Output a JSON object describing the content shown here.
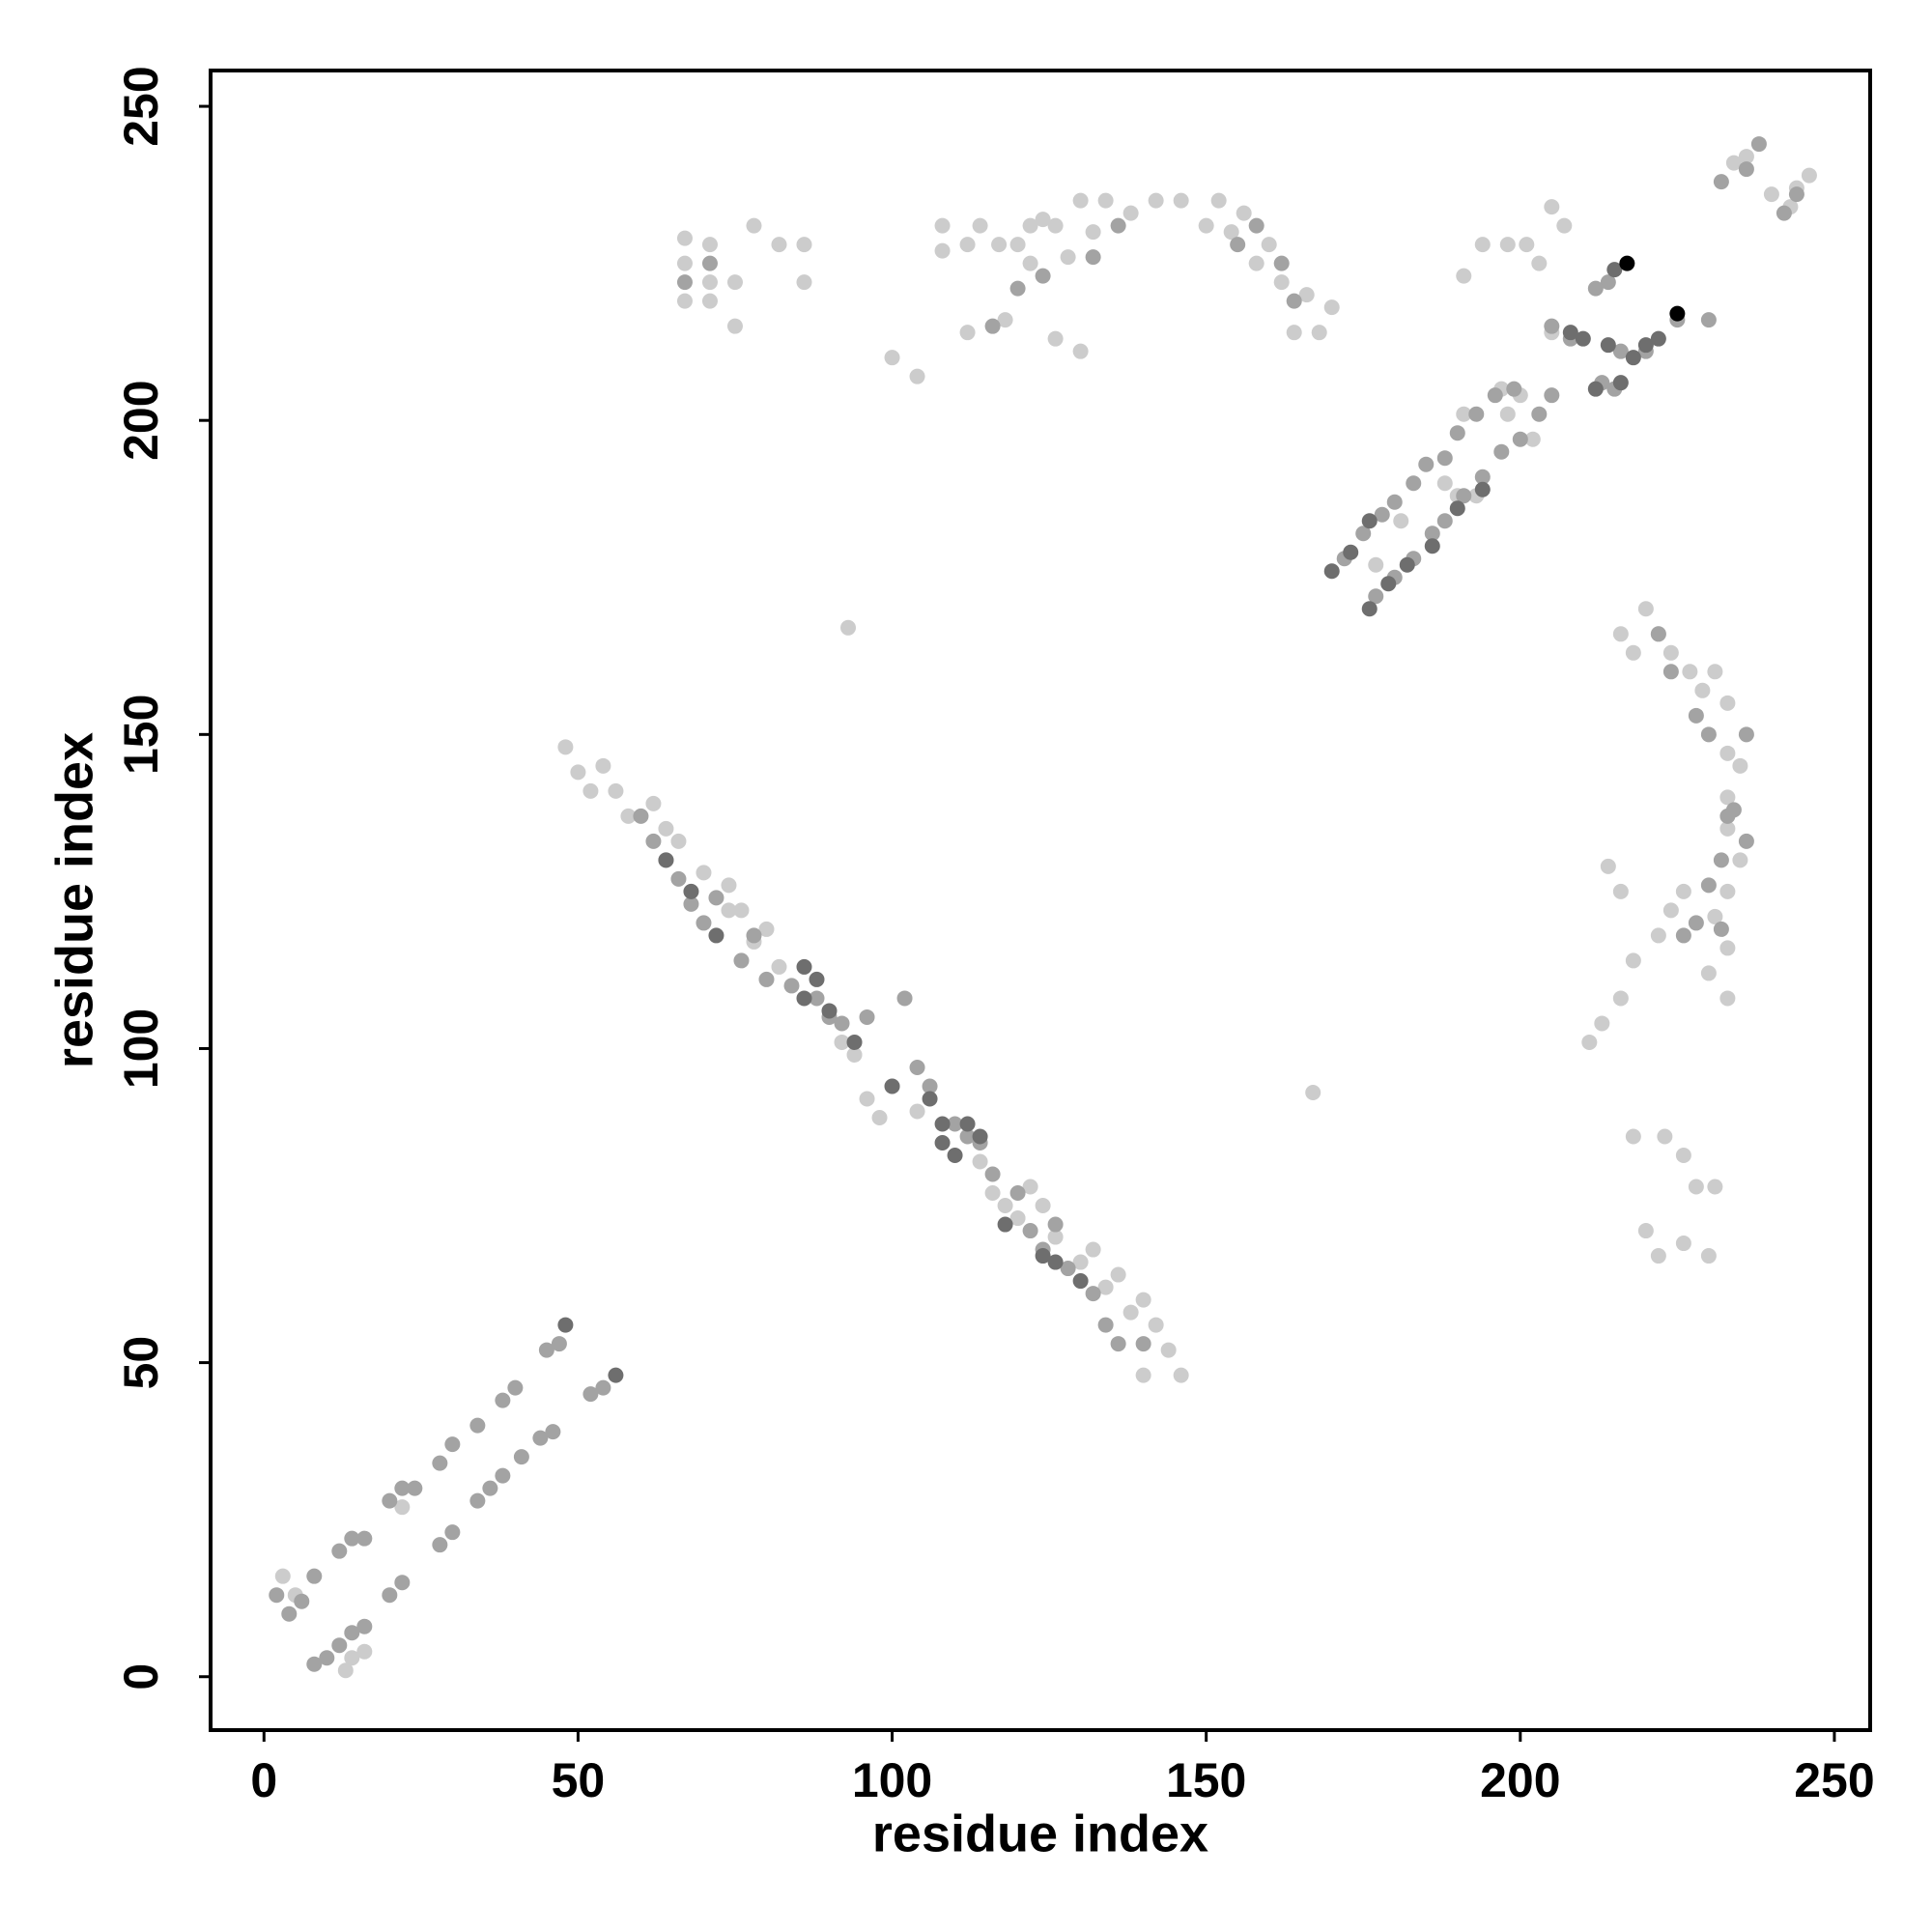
{
  "chart_data": {
    "type": "scatter",
    "xlabel": "residue index",
    "ylabel": "residue index",
    "xlim": [
      -8.5,
      255.7
    ],
    "ylim": [
      -8.5,
      255.7
    ],
    "xticks": [
      0,
      50,
      100,
      150,
      200,
      250
    ],
    "yticks": [
      0,
      50,
      100,
      150,
      200,
      250
    ],
    "series": [
      {
        "color": "#cccccc",
        "x": [
          67,
          67,
          67,
          71,
          71,
          71,
          75,
          75,
          78,
          82,
          86,
          86,
          100,
          104,
          108,
          108,
          112,
          112,
          114,
          117,
          118,
          120,
          122,
          122,
          124,
          126,
          126,
          128,
          130,
          130,
          132,
          134,
          138,
          142,
          146,
          150,
          152,
          154,
          156,
          158,
          160,
          162,
          164,
          166,
          168,
          170,
          93,
          167,
          191,
          194,
          198,
          201,
          203,
          205,
          207,
          205,
          190,
          193,
          191,
          198,
          197,
          200,
          202,
          216,
          218,
          220,
          222,
          224,
          227,
          229,
          231,
          233,
          233,
          233,
          233,
          235,
          235,
          233,
          231,
          233,
          230,
          233,
          222,
          224,
          226,
          214,
          216,
          218,
          216,
          213,
          211,
          218,
          223,
          226,
          228,
          231,
          220,
          222,
          226,
          230,
          234,
          236,
          240,
          243,
          244,
          246,
          177,
          188,
          181,
          48,
          50,
          52,
          54,
          56,
          58,
          62,
          64,
          66,
          70,
          74,
          74,
          76,
          78,
          80,
          82,
          92,
          94,
          96,
          98,
          100,
          104,
          114,
          116,
          118,
          120,
          122,
          124,
          126,
          130,
          132,
          134,
          136,
          138,
          140,
          142,
          144,
          146,
          140,
          3,
          5,
          14,
          13,
          16,
          22
        ],
        "values": [
          229,
          225,
          219,
          228,
          222,
          219,
          222,
          215,
          231,
          228,
          228,
          222,
          210,
          207,
          231,
          227,
          228,
          214,
          231,
          228,
          216,
          228,
          231,
          225,
          232,
          231,
          213,
          226,
          235,
          211,
          230,
          235,
          233,
          235,
          235,
          231,
          235,
          230,
          233,
          225,
          228,
          222,
          214,
          220,
          214,
          218,
          167,
          93,
          223,
          228,
          228,
          228,
          225,
          234,
          231,
          214,
          188,
          188,
          201,
          201,
          205,
          204,
          197,
          166,
          163,
          170,
          166,
          163,
          160,
          157,
          160,
          155,
          147,
          140,
          135,
          145,
          130,
          125,
          121,
          116,
          112,
          108,
          118,
          122,
          125,
          129,
          125,
          114,
          108,
          104,
          101,
          86,
          86,
          83,
          78,
          78,
          71,
          67,
          69,
          67,
          241,
          242,
          236,
          234,
          237,
          239,
          177,
          190,
          184,
          148,
          144,
          141,
          145,
          141,
          137,
          139,
          135,
          133,
          128,
          126,
          122,
          122,
          117,
          119,
          113,
          101,
          99,
          92,
          89,
          94,
          90,
          82,
          77,
          75,
          73,
          78,
          75,
          70,
          66,
          68,
          62,
          64,
          58,
          60,
          56,
          52,
          48,
          48,
          16,
          13,
          3,
          1,
          4,
          27
        ]
      },
      {
        "color": "#a3a3a3",
        "x": [
          2,
          4,
          6,
          8,
          12,
          14,
          16,
          20,
          22,
          24,
          28,
          30,
          34,
          38,
          40,
          45,
          47,
          8,
          10,
          12,
          14,
          16,
          20,
          22,
          28,
          30,
          34,
          36,
          38,
          41,
          44,
          46,
          52,
          54,
          67,
          71,
          116,
          120,
          124,
          132,
          136,
          155,
          158,
          162,
          164,
          60,
          62,
          64,
          66,
          68,
          70,
          72,
          76,
          78,
          80,
          84,
          88,
          90,
          92,
          96,
          102,
          104,
          106,
          110,
          112,
          114,
          116,
          120,
          122,
          124,
          126,
          128,
          132,
          134,
          136,
          140,
          172,
          175,
          178,
          180,
          183,
          185,
          188,
          190,
          193,
          196,
          199,
          177,
          180,
          183,
          186,
          188,
          191,
          194,
          197,
          200,
          203,
          205,
          213,
          215,
          214,
          212,
          216,
          205,
          208,
          225,
          220,
          230,
          222,
          224,
          228,
          230,
          234,
          236,
          232,
          230,
          228,
          232,
          226,
          233,
          236,
          232,
          236,
          238,
          242,
          244
        ],
        "values": [
          13,
          10,
          12,
          16,
          20,
          22,
          22,
          28,
          30,
          30,
          34,
          37,
          40,
          44,
          46,
          52,
          53,
          2,
          3,
          5,
          7,
          8,
          13,
          15,
          21,
          23,
          28,
          30,
          32,
          35,
          38,
          39,
          45,
          46,
          222,
          225,
          215,
          221,
          223,
          226,
          231,
          228,
          231,
          225,
          219,
          137,
          133,
          130,
          127,
          123,
          120,
          124,
          114,
          118,
          111,
          110,
          108,
          105,
          104,
          105,
          108,
          97,
          94,
          88,
          86,
          85,
          80,
          77,
          71,
          68,
          72,
          65,
          61,
          56,
          53,
          53,
          178,
          182,
          185,
          187,
          190,
          193,
          194,
          198,
          201,
          204,
          205,
          172,
          175,
          178,
          182,
          184,
          188,
          191,
          195,
          197,
          201,
          204,
          206,
          205,
          222,
          221,
          211,
          215,
          213,
          216,
          211,
          216,
          166,
          160,
          153,
          150,
          138,
          133,
          130,
          126,
          120,
          119,
          118,
          137,
          150,
          238,
          240,
          244,
          233,
          236
        ]
      },
      {
        "color": "#6e6e6e",
        "x": [
          48,
          56,
          64,
          68,
          72,
          86,
          86,
          88,
          90,
          94,
          100,
          106,
          108,
          108,
          110,
          112,
          114,
          118,
          124,
          126,
          130,
          170,
          173,
          176,
          176,
          179,
          182,
          186,
          190,
          194,
          212,
          214,
          216,
          218,
          220,
          222,
          210,
          208,
          215
        ],
        "values": [
          56,
          48,
          130,
          125,
          118,
          113,
          108,
          111,
          106,
          101,
          94,
          92,
          88,
          85,
          83,
          88,
          86,
          72,
          67,
          66,
          63,
          176,
          179,
          184,
          170,
          174,
          177,
          180,
          186,
          189,
          205,
          212,
          206,
          210,
          212,
          213,
          213,
          214,
          224
        ]
      },
      {
        "color": "#000000",
        "x": [
          217,
          225
        ],
        "values": [
          225,
          217
        ]
      }
    ]
  }
}
